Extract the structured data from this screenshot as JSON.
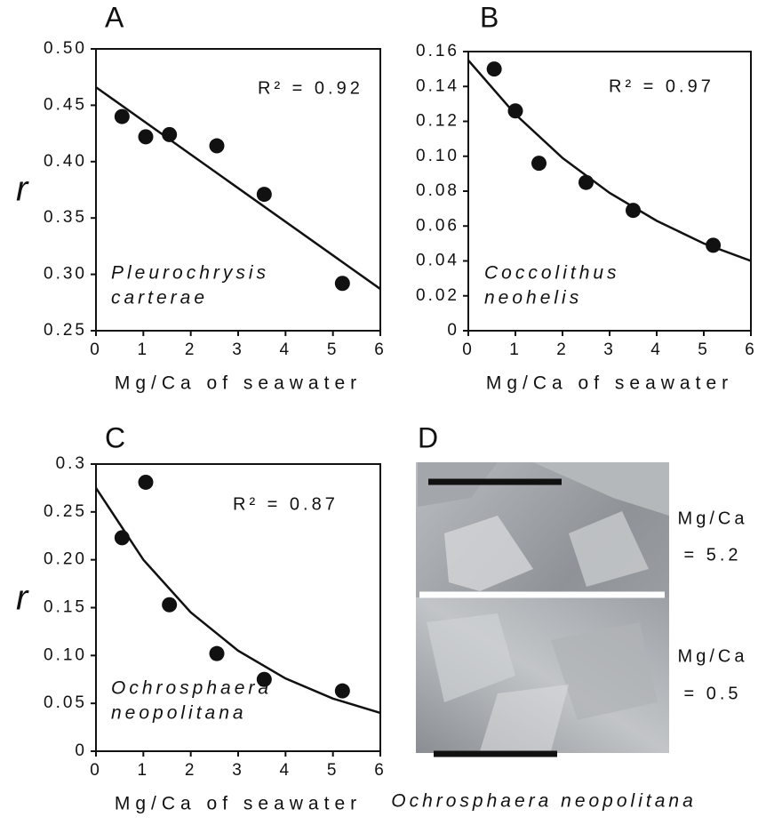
{
  "chart_data": [
    {
      "type": "scatter",
      "panel_label": "A",
      "x_label": "Mg/Ca of seawater",
      "y_label": "r",
      "annotation": "R² = 0.92",
      "species": [
        "Pleurochrysis",
        "carterae"
      ],
      "x": [
        0.55,
        1.05,
        1.55,
        2.55,
        3.55,
        5.2
      ],
      "values": [
        0.44,
        0.422,
        0.424,
        0.414,
        0.371,
        0.292
      ],
      "fit": {
        "x": [
          0,
          6
        ],
        "values": [
          0.466,
          0.287
        ]
      },
      "color": "#111111",
      "xlim": [
        0,
        6
      ],
      "xticks": [
        0,
        1,
        2,
        3,
        4,
        5,
        6
      ],
      "ylim": [
        0.25,
        0.5
      ],
      "yticks": [
        0.25,
        {
          "value": 0.3,
          "label": "0.30"
        },
        0.35,
        {
          "value": 0.4,
          "label": "0.40"
        },
        0.45,
        {
          "value": 0.5,
          "label": "0.50"
        }
      ]
    },
    {
      "type": "scatter",
      "panel_label": "B",
      "x_label": "Mg/Ca of seawater",
      "annotation": "R² = 0.97",
      "species": [
        "Coccolithus",
        "neohelis"
      ],
      "x": [
        0.55,
        1.0,
        1.5,
        2.5,
        3.5,
        5.2
      ],
      "values": [
        0.15,
        0.126,
        0.096,
        0.085,
        0.069,
        0.049
      ],
      "fit": {
        "x": [
          0,
          1,
          2,
          3,
          4,
          5,
          6
        ],
        "values": [
          0.155,
          0.124,
          0.099,
          0.079,
          0.063,
          0.05,
          0.04
        ]
      },
      "color": "#111111",
      "xlim": [
        0,
        6
      ],
      "xticks": [
        0,
        1,
        2,
        3,
        4,
        5,
        6
      ],
      "ylim": [
        0,
        0.16
      ],
      "yticks": [
        0,
        0.02,
        0.04,
        0.06,
        0.08,
        {
          "value": 0.1,
          "label": "0.10"
        },
        0.12,
        0.14,
        0.16
      ]
    },
    {
      "type": "scatter",
      "panel_label": "C",
      "x_label": "Mg/Ca of seawater",
      "y_label": "r",
      "annotation": "R² = 0.87",
      "species": [
        "Ochrosphaera",
        "neopolitana"
      ],
      "x": [
        0.55,
        1.05,
        1.55,
        2.55,
        3.55,
        5.2
      ],
      "values": [
        0.223,
        0.281,
        0.153,
        0.102,
        0.075,
        0.063
      ],
      "fit": {
        "x": [
          0,
          1,
          2,
          3,
          4,
          5,
          6
        ],
        "values": [
          0.275,
          0.2,
          0.145,
          0.105,
          0.076,
          0.055,
          0.04
        ]
      },
      "color": "#111111",
      "xlim": [
        0,
        6
      ],
      "xticks": [
        0,
        1,
        2,
        3,
        4,
        5,
        6
      ],
      "ylim": [
        0,
        0.3
      ],
      "yticks": [
        0,
        0.05,
        {
          "value": 0.1,
          "label": "0.10"
        },
        0.15,
        {
          "value": 0.2,
          "label": "0.20"
        },
        0.25,
        0.3
      ]
    }
  ],
  "panel_d": {
    "panel_label": "D",
    "annotations": [
      [
        "Mg/Ca",
        "= 5.2"
      ],
      [
        "Mg/Ca",
        "= 0.5"
      ]
    ],
    "caption": "Ochrosphaera neopolitana"
  }
}
